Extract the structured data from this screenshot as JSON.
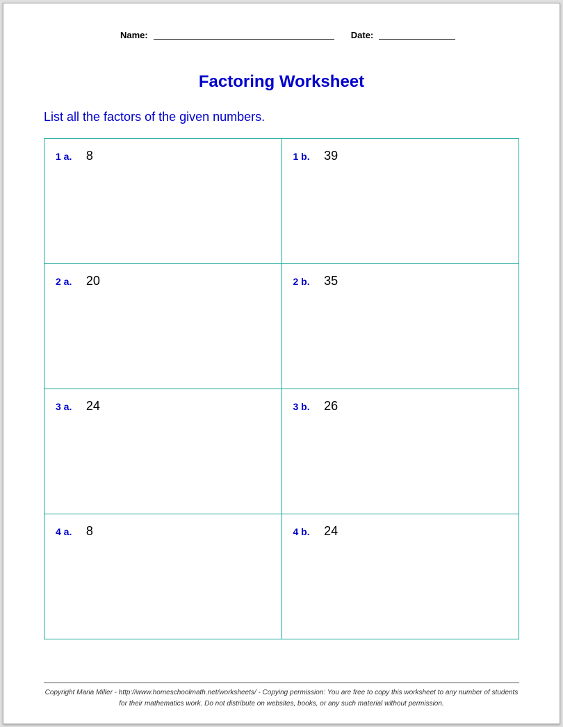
{
  "header": {
    "name_label": "Name:",
    "date_label": "Date:"
  },
  "title": "Factoring Worksheet",
  "instructions": "List all the factors of the given numbers.",
  "table": {
    "border_color": "#1aa89c",
    "label_color": "#0000cc",
    "value_color": "#000000",
    "rows": [
      {
        "a": {
          "label": "1 a.",
          "value": "8"
        },
        "b": {
          "label": "1 b.",
          "value": "39"
        }
      },
      {
        "a": {
          "label": "2 a.",
          "value": "20"
        },
        "b": {
          "label": "2 b.",
          "value": "35"
        }
      },
      {
        "a": {
          "label": "3 a.",
          "value": "24"
        },
        "b": {
          "label": "3 b.",
          "value": "26"
        }
      },
      {
        "a": {
          "label": "4 a.",
          "value": "8"
        },
        "b": {
          "label": "4 b.",
          "value": "24"
        }
      }
    ]
  },
  "footer": "Copyright Maria Miller - http://www.homeschoolmath.net/worksheets/ - Copying permission: You are free to copy this worksheet to any number of students for their mathematics work. Do not distribute on websites, books, or any such material without permission."
}
